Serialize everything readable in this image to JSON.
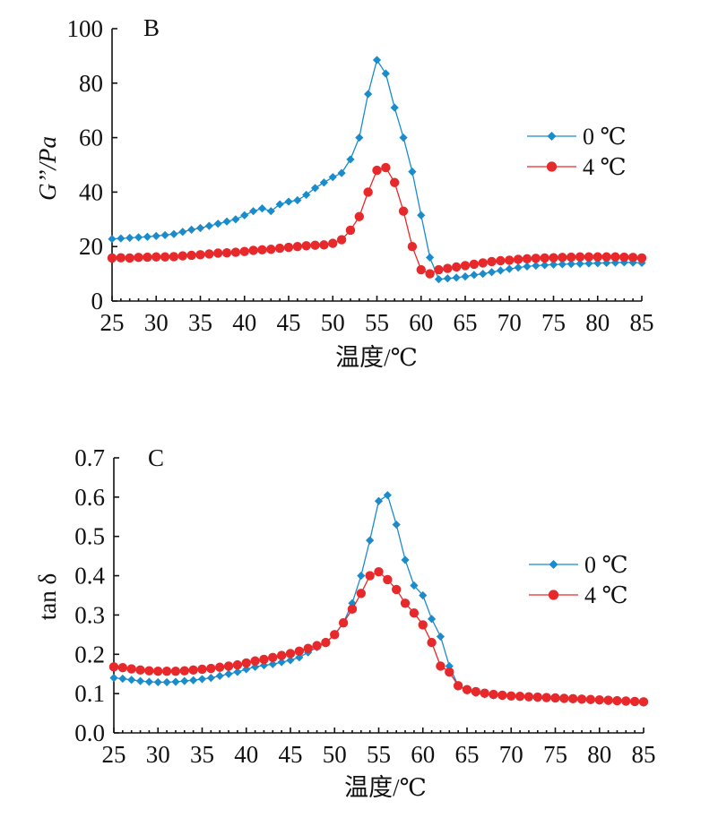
{
  "chart_data": [
    {
      "type": "line",
      "panel_label": "B",
      "ylabel": "G’’/Pa",
      "xlabel": "温度/℃",
      "xlim": [
        25,
        85
      ],
      "ylim": [
        0,
        100
      ],
      "x_ticks": [
        "25",
        "30",
        "35",
        "40",
        "45",
        "50",
        "55",
        "60",
        "65",
        "70",
        "75",
        "80",
        "85"
      ],
      "y_ticks": [
        "0",
        "20",
        "40",
        "60",
        "80",
        "100"
      ],
      "legend_position": "right",
      "series": [
        {
          "name": "0 ℃",
          "color": "#1a8ccc",
          "marker": "diamond",
          "x": [
            25,
            26,
            27,
            28,
            29,
            30,
            31,
            32,
            33,
            34,
            35,
            36,
            37,
            38,
            39,
            40,
            41,
            42,
            43,
            44,
            45,
            46,
            47,
            48,
            49,
            50,
            51,
            52,
            53,
            54,
            55,
            56,
            57,
            58,
            59,
            60,
            61,
            62,
            63,
            64,
            65,
            66,
            67,
            68,
            69,
            70,
            71,
            72,
            73,
            74,
            75,
            76,
            77,
            78,
            79,
            80,
            81,
            82,
            83,
            84,
            85
          ],
          "values": [
            22.8,
            23.0,
            23.2,
            23.4,
            23.6,
            23.9,
            24.2,
            24.6,
            25.4,
            26.2,
            26.8,
            27.6,
            28.4,
            29.2,
            30.0,
            31.5,
            33.0,
            34.0,
            33.0,
            35.5,
            36.5,
            37.0,
            39.0,
            41.5,
            43.5,
            45.5,
            47.0,
            52.0,
            60.0,
            76.0,
            88.5,
            83.5,
            71.0,
            60.0,
            47.5,
            31.5,
            16.0,
            8.0,
            8.3,
            8.6,
            9.0,
            9.6,
            10.0,
            10.6,
            11.2,
            11.8,
            12.3,
            12.7,
            13.0,
            13.2,
            13.4,
            13.5,
            13.6,
            13.7,
            13.8,
            13.9,
            14.0,
            14.1,
            14.2,
            14.1,
            14.0
          ]
        },
        {
          "name": "4 ℃",
          "color": "#e8292b",
          "marker": "circle",
          "x": [
            25,
            26,
            27,
            28,
            29,
            30,
            31,
            32,
            33,
            34,
            35,
            36,
            37,
            38,
            39,
            40,
            41,
            42,
            43,
            44,
            45,
            46,
            47,
            48,
            49,
            50,
            51,
            52,
            53,
            54,
            55,
            56,
            57,
            58,
            59,
            60,
            61,
            62,
            63,
            64,
            65,
            66,
            67,
            68,
            69,
            70,
            71,
            72,
            73,
            74,
            75,
            76,
            77,
            78,
            79,
            80,
            81,
            82,
            83,
            84,
            85
          ],
          "values": [
            15.8,
            15.9,
            15.8,
            16.0,
            16.1,
            16.2,
            16.2,
            16.3,
            16.6,
            16.8,
            17.0,
            17.3,
            17.6,
            17.7,
            17.9,
            18.2,
            18.6,
            18.8,
            19.0,
            19.4,
            19.7,
            20.0,
            20.3,
            20.5,
            20.6,
            21.2,
            22.5,
            26.0,
            31.0,
            40.0,
            48.0,
            49.0,
            43.5,
            33.0,
            20.0,
            11.5,
            10.0,
            11.5,
            12.0,
            12.5,
            13.0,
            13.5,
            14.0,
            14.5,
            14.8,
            15.0,
            15.3,
            15.5,
            15.7,
            15.8,
            15.9,
            16.0,
            16.1,
            16.2,
            16.2,
            16.2,
            16.2,
            16.2,
            16.1,
            16.0,
            15.8
          ]
        }
      ]
    },
    {
      "type": "line",
      "panel_label": "C",
      "ylabel": "tan δ",
      "xlabel": "温度/℃",
      "xlim": [
        25,
        85
      ],
      "ylim": [
        0,
        0.7
      ],
      "x_ticks": [
        "25",
        "30",
        "35",
        "40",
        "45",
        "50",
        "55",
        "60",
        "65",
        "70",
        "75",
        "80",
        "85"
      ],
      "y_ticks": [
        "0.0",
        "0.1",
        "0.2",
        "0.3",
        "0.4",
        "0.5",
        "0.6",
        "0.7"
      ],
      "legend_position": "right",
      "series": [
        {
          "name": "0 ℃",
          "color": "#1a8ccc",
          "marker": "diamond",
          "x": [
            25,
            26,
            27,
            28,
            29,
            30,
            31,
            32,
            33,
            34,
            35,
            36,
            37,
            38,
            39,
            40,
            41,
            42,
            43,
            44,
            45,
            46,
            47,
            48,
            49,
            50,
            51,
            52,
            53,
            54,
            55,
            56,
            57,
            58,
            59,
            60,
            61,
            62,
            63,
            64,
            65,
            66,
            67,
            68,
            69,
            70,
            71,
            72,
            73,
            74,
            75,
            76,
            77,
            78,
            79,
            80,
            81,
            82,
            83,
            84,
            85
          ],
          "values": [
            0.14,
            0.138,
            0.135,
            0.132,
            0.13,
            0.129,
            0.129,
            0.13,
            0.132,
            0.134,
            0.137,
            0.14,
            0.145,
            0.15,
            0.155,
            0.162,
            0.168,
            0.172,
            0.175,
            0.18,
            0.185,
            0.192,
            0.205,
            0.218,
            0.23,
            0.25,
            0.28,
            0.33,
            0.4,
            0.49,
            0.59,
            0.605,
            0.53,
            0.44,
            0.375,
            0.35,
            0.29,
            0.245,
            0.17,
            0.12,
            0.108,
            0.102,
            0.098,
            0.096,
            0.094,
            0.092,
            0.091,
            0.09,
            0.089,
            0.088,
            0.087,
            0.086,
            0.085,
            0.084,
            0.083,
            0.082,
            0.081,
            0.08,
            0.079,
            0.078,
            0.077
          ]
        },
        {
          "name": "4 ℃",
          "color": "#e8292b",
          "marker": "circle",
          "x": [
            25,
            26,
            27,
            28,
            29,
            30,
            31,
            32,
            33,
            34,
            35,
            36,
            37,
            38,
            39,
            40,
            41,
            42,
            43,
            44,
            45,
            46,
            47,
            48,
            49,
            50,
            51,
            52,
            53,
            54,
            55,
            56,
            57,
            58,
            59,
            60,
            61,
            62,
            63,
            64,
            65,
            66,
            67,
            68,
            69,
            70,
            71,
            72,
            73,
            74,
            75,
            76,
            77,
            78,
            79,
            80,
            81,
            82,
            83,
            84,
            85
          ],
          "values": [
            0.168,
            0.166,
            0.163,
            0.16,
            0.158,
            0.157,
            0.157,
            0.157,
            0.158,
            0.16,
            0.162,
            0.164,
            0.167,
            0.17,
            0.173,
            0.178,
            0.183,
            0.187,
            0.192,
            0.197,
            0.202,
            0.208,
            0.215,
            0.222,
            0.23,
            0.25,
            0.28,
            0.315,
            0.355,
            0.4,
            0.41,
            0.39,
            0.365,
            0.33,
            0.305,
            0.275,
            0.23,
            0.17,
            0.155,
            0.12,
            0.11,
            0.105,
            0.101,
            0.098,
            0.096,
            0.094,
            0.093,
            0.092,
            0.091,
            0.09,
            0.089,
            0.088,
            0.087,
            0.086,
            0.085,
            0.084,
            0.083,
            0.082,
            0.081,
            0.08,
            0.079
          ]
        }
      ]
    }
  ]
}
